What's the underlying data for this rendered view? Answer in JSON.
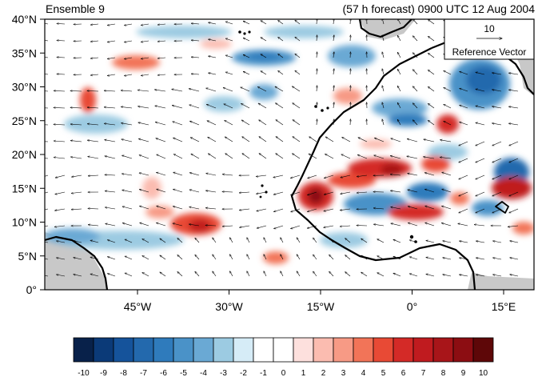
{
  "title_left": "Ensemble 9",
  "title_right": "(57 h forecast) 0900 UTC 12 Aug 2004",
  "y_axis": {
    "tick_labels": [
      "40°N",
      "35°N",
      "30°N",
      "25°N",
      "20°N",
      "15°N",
      "10°N",
      "5°N",
      "0°"
    ]
  },
  "x_axis": {
    "tick_labels": [
      "45°W",
      "30°W",
      "15°W",
      "0°",
      "15°E"
    ]
  },
  "reference_vector": {
    "value": "10",
    "label": "Reference Vector"
  },
  "colorbar": {
    "labels": [
      "-10",
      "-9",
      "-8",
      "-7",
      "-6",
      "-5",
      "-4",
      "-3",
      "-2",
      "-1",
      "0",
      "1",
      "2",
      "3",
      "4",
      "5",
      "6",
      "7",
      "8",
      "9",
      "10"
    ],
    "colors": [
      "#08214a",
      "#0b3a78",
      "#15539b",
      "#2369ad",
      "#2f7bbc",
      "#4a92c8",
      "#6aa9d4",
      "#9ccbe2",
      "#d6ecf7",
      "#ffffff",
      "#ffffff",
      "#fde0dd",
      "#fbbcb0",
      "#f79a85",
      "#f27458",
      "#e84a35",
      "#d42a27",
      "#c01b1f",
      "#a81519",
      "#8c0d12",
      "#5e0708"
    ]
  },
  "map_colors": {
    "land_grey": "#c8c8c8",
    "coast": "#000000"
  }
}
